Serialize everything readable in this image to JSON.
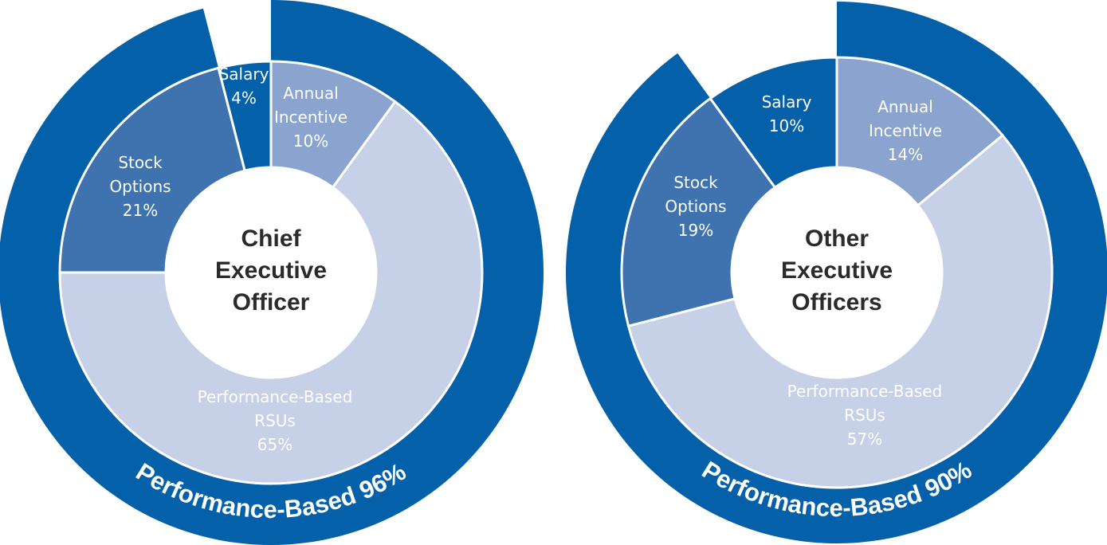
{
  "chart_data": [
    {
      "type": "pie",
      "title_lines": [
        "Chief",
        "Executive",
        "Officer"
      ],
      "outer_label": "Performance-Based 96%",
      "outer_value": 96,
      "segments": [
        {
          "name_lines": [
            "Annual",
            "Incentive"
          ],
          "value_label": "10%",
          "value": 10,
          "color": "#8aa3cf",
          "text_color": "#ffffff"
        },
        {
          "name_lines": [
            "Performance-Based",
            "RSUs"
          ],
          "value_label": "65%",
          "value": 65,
          "color": "#c6d1e8",
          "text_color": "#ffffff"
        },
        {
          "name_lines": [
            "Stock",
            "Options"
          ],
          "value_label": "21%",
          "value": 21,
          "color": "#3f73b0",
          "text_color": "#ffffff"
        },
        {
          "name_lines": [
            "Salary"
          ],
          "value_label": "4%",
          "value": 4,
          "color": "#0460a9",
          "text_color": "#ffffff"
        }
      ]
    },
    {
      "type": "pie",
      "title_lines": [
        "Other",
        "Executive",
        "Officers"
      ],
      "outer_label": "Performance-Based 90%",
      "outer_value": 90,
      "segments": [
        {
          "name_lines": [
            "Annual",
            "Incentive"
          ],
          "value_label": "14%",
          "value": 14,
          "color": "#8aa3cf",
          "text_color": "#ffffff"
        },
        {
          "name_lines": [
            "Performance-Based",
            "RSUs"
          ],
          "value_label": "57%",
          "value": 57,
          "color": "#c6d1e8",
          "text_color": "#ffffff"
        },
        {
          "name_lines": [
            "Stock",
            "Options"
          ],
          "value_label": "19%",
          "value": 19,
          "color": "#3f73b0",
          "text_color": "#ffffff"
        },
        {
          "name_lines": [
            "Salary"
          ],
          "value_label": "10%",
          "value": 10,
          "color": "#0460a9",
          "text_color": "#ffffff"
        }
      ]
    }
  ],
  "colors": {
    "outer_ring": "#0460a9",
    "separator": "#ffffff",
    "center": "#ffffff"
  }
}
